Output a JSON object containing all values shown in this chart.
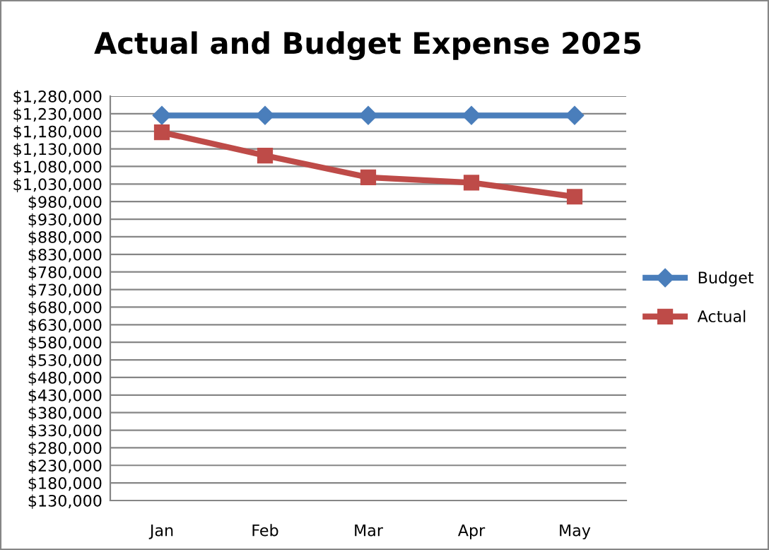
{
  "chart_data": {
    "type": "line",
    "title": "Actual and Budget Expense 2025",
    "categories": [
      "Jan",
      "Feb",
      "Mar",
      "Apr",
      "May"
    ],
    "series": [
      {
        "name": "Budget",
        "color": "#4a7ebb",
        "marker": "diamond",
        "values": [
          1225000,
          1225000,
          1225000,
          1225000,
          1225000
        ]
      },
      {
        "name": "Actual",
        "color": "#be4b48",
        "marker": "square",
        "values": [
          1177000,
          1111000,
          1049000,
          1034000,
          994000
        ]
      }
    ],
    "ylim": [
      130000,
      1280000
    ],
    "yticks": [
      {
        "value": 130000,
        "label": "$130,000"
      },
      {
        "value": 180000,
        "label": "$180,000"
      },
      {
        "value": 230000,
        "label": "$230,000"
      },
      {
        "value": 280000,
        "label": "$280,000"
      },
      {
        "value": 330000,
        "label": "$330,000"
      },
      {
        "value": 380000,
        "label": "$380,000"
      },
      {
        "value": 430000,
        "label": "$430,000"
      },
      {
        "value": 480000,
        "label": "$480,000"
      },
      {
        "value": 530000,
        "label": "$530,000"
      },
      {
        "value": 580000,
        "label": "$580,000"
      },
      {
        "value": 630000,
        "label": "$630,000"
      },
      {
        "value": 680000,
        "label": "$680,000"
      },
      {
        "value": 730000,
        "label": "$730,000"
      },
      {
        "value": 780000,
        "label": "$780,000"
      },
      {
        "value": 830000,
        "label": "$830,000"
      },
      {
        "value": 880000,
        "label": "$880,000"
      },
      {
        "value": 930000,
        "label": "$930,000"
      },
      {
        "value": 980000,
        "label": "$980,000"
      },
      {
        "value": 1030000,
        "label": "$1,030,000"
      },
      {
        "value": 1080000,
        "label": "$1,080,000"
      },
      {
        "value": 1130000,
        "label": "$1,130,000"
      },
      {
        "value": 1180000,
        "label": "$1,180,000"
      },
      {
        "value": 1230000,
        "label": "$1,230,000"
      },
      {
        "value": 1280000,
        "label": "$1,280,000"
      }
    ],
    "grid": "y",
    "legend": "right",
    "line_style": "solid"
  }
}
